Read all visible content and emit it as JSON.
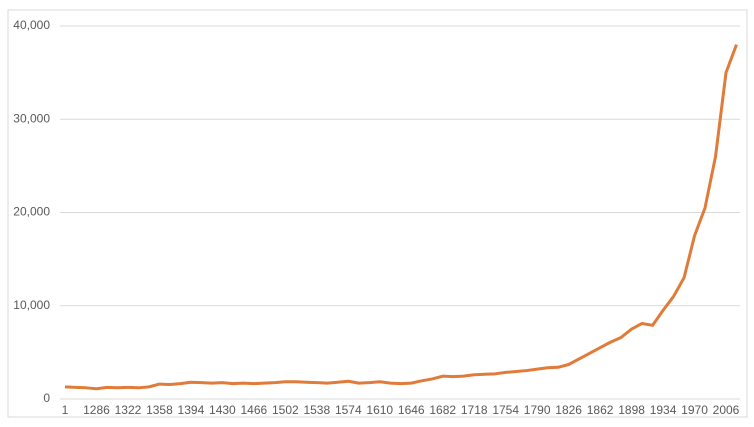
{
  "chart_data": {
    "type": "line",
    "categories": [
      "1",
      null,
      null,
      "1286",
      null,
      null,
      "1322",
      null,
      null,
      "1358",
      null,
      null,
      "1394",
      null,
      null,
      "1430",
      null,
      null,
      "1466",
      null,
      null,
      "1502",
      null,
      null,
      "1538",
      null,
      null,
      "1574",
      null,
      null,
      "1610",
      null,
      null,
      "1646",
      null,
      null,
      "1682",
      null,
      null,
      "1718",
      null,
      null,
      "1754",
      null,
      null,
      "1790",
      null,
      null,
      "1826",
      null,
      null,
      "1862",
      null,
      null,
      "1898",
      null,
      null,
      "1934",
      null,
      null,
      "1970",
      null,
      null,
      "2006",
      null
    ],
    "series": [
      {
        "color": "#e07b39",
        "values": [
          1300,
          1250,
          1200,
          1100,
          1250,
          1200,
          1250,
          1200,
          1300,
          1600,
          1550,
          1650,
          1800,
          1750,
          1700,
          1750,
          1650,
          1700,
          1650,
          1700,
          1750,
          1850,
          1850,
          1800,
          1750,
          1700,
          1800,
          1900,
          1700,
          1750,
          1850,
          1700,
          1650,
          1700,
          1950,
          2150,
          2450,
          2400,
          2450,
          2600,
          2650,
          2700,
          2850,
          2950,
          3050,
          3200,
          3350,
          3400,
          3700,
          4300,
          4900,
          5500,
          6100,
          6600,
          7500,
          8100,
          7900,
          9500,
          11000,
          13000,
          17500,
          20500,
          26000,
          35000,
          38000
        ]
      }
    ],
    "ylim": [
      0,
      40000
    ],
    "yticks": [
      0,
      {
        "value": 10000,
        "label": "10,000"
      },
      {
        "value": 20000,
        "label": "20,000"
      },
      {
        "value": 30000,
        "label": "30,000"
      },
      {
        "value": 40000,
        "label": "40,000"
      }
    ],
    "grid": true
  }
}
